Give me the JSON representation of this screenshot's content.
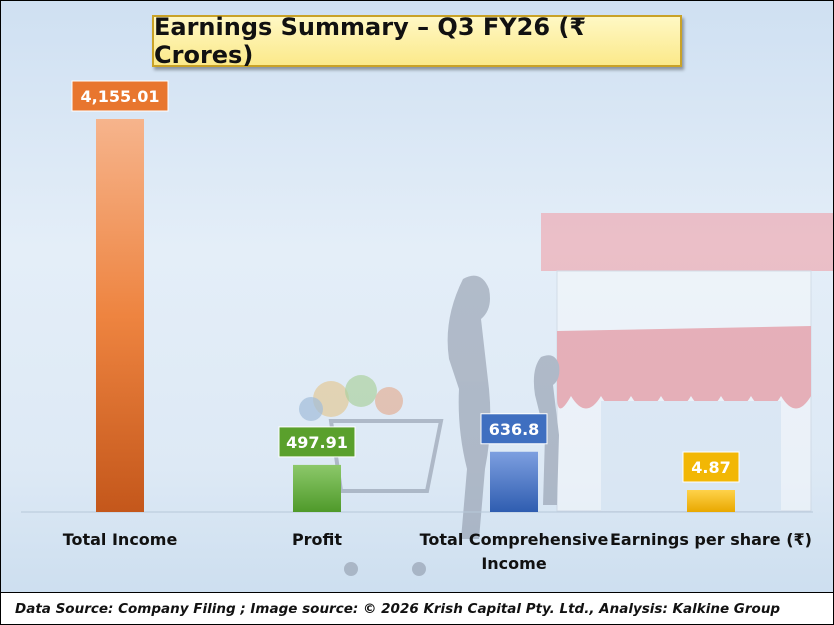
{
  "source": "Data Source: Company Filing ; Image source: © 2026 Krish Capital Pty. Ltd., Analysis: Kalkine Group",
  "chart_data": {
    "type": "bar",
    "title": "Earnings Summary – Q3 FY26 (₹ Crores)",
    "categories": [
      "Total Income",
      "Profit",
      "Total Comprehensive Income",
      "Earnings per share (₹)"
    ],
    "values": [
      4155.01,
      497.91,
      636.8,
      4.87
    ],
    "value_labels": [
      "4,155.01",
      "497.91",
      "636.8",
      "4.87"
    ],
    "colors": [
      "#e8762e",
      "#5aa02c",
      "#3f6fc0",
      "#f2b705"
    ],
    "grid": false,
    "legend": "none"
  }
}
